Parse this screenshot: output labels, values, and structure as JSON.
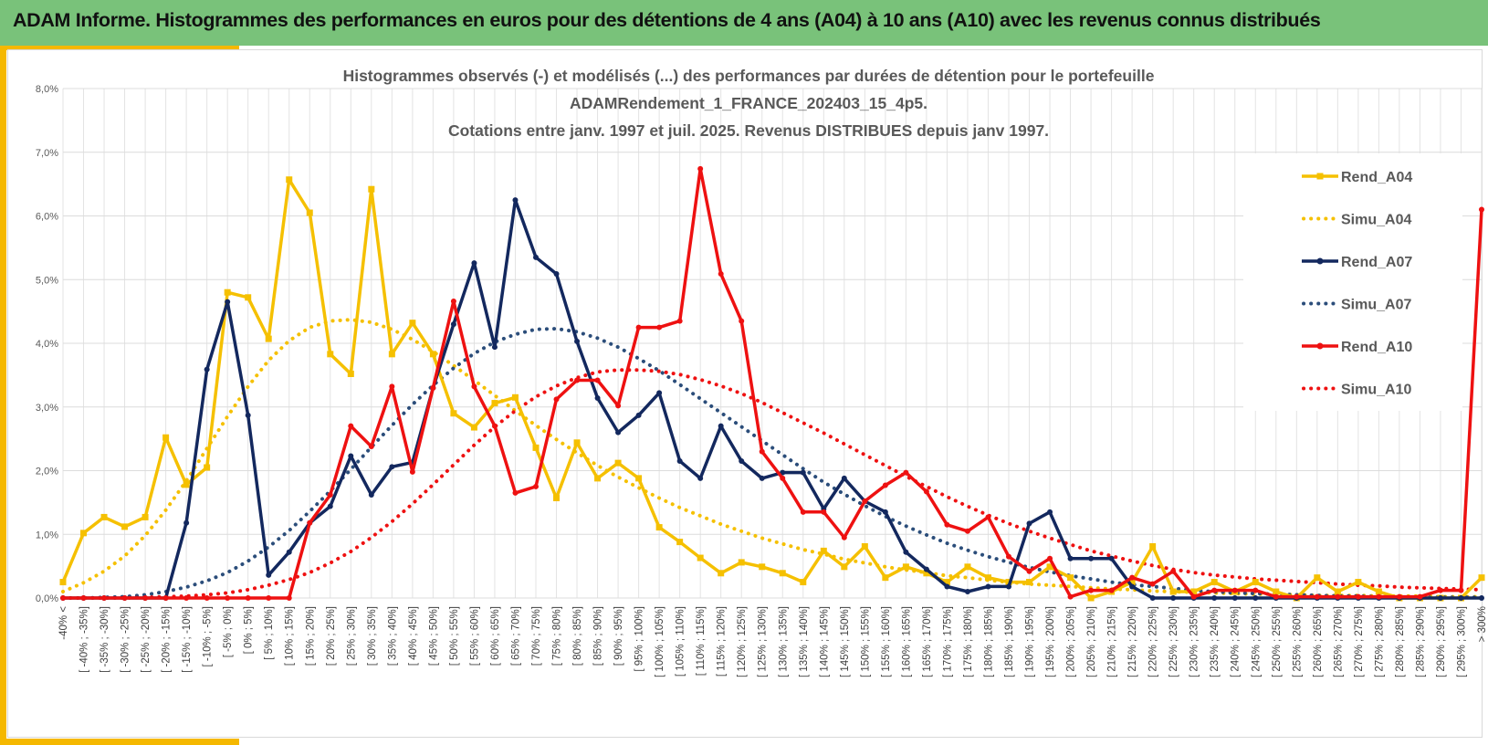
{
  "header": {
    "title": "ADAM Informe. Histogrammes des performances en euros pour des détentions de 4 ans (A04) à 10 ans (A10) avec les revenus connus distribués"
  },
  "colors": {
    "header_bg": "#79c27a",
    "accent": "#f5b800",
    "rend_a04": "#f5c000",
    "rend_a07": "#13285e",
    "rend_a10": "#ee1111"
  },
  "chart_data": {
    "type": "line",
    "title_lines": [
      "Histogrammes observés (-) et modélisés (...) des performances par durées de détention pour  le portefeuille",
      "ADAMRendement_1_FRANCE_202403_15_4p5.",
      "Cotations entre janv. 1997 et juil. 2025. Revenus DISTRIBUES depuis janv 1997."
    ],
    "ylim": [
      0,
      8
    ],
    "y_ticks": [
      "0,0%",
      "1,0%",
      "2,0%",
      "3,0%",
      "4,0%",
      "5,0%",
      "6,0%",
      "7,0%",
      "8,0%"
    ],
    "grid": true,
    "legend_position": "right",
    "categories": [
      "-40% <",
      "[ -40% ; -35%]",
      "[ -35% ; -30%]",
      "[ -30% ; -25%]",
      "[ -25% ; -20%]",
      "[ -20% ; -15%]",
      "[ -15% ; -10%]",
      "[ -10% ; -5%]",
      "[ -5% ; 0%]",
      "[ 0% ; 5%]",
      "[ 5% ; 10%]",
      "[ 10% ; 15%]",
      "[ 15% ; 20%]",
      "[ 20% ; 25%]",
      "[ 25% ; 30%]",
      "[ 30% ; 35%]",
      "[ 35% ; 40%]",
      "[ 40% ; 45%]",
      "[ 45% ; 50%]",
      "[ 50% ; 55%]",
      "[ 55% ; 60%]",
      "[ 60% ; 65%]",
      "[ 65% ; 70%]",
      "[ 70% ; 75%]",
      "[ 75% ; 80%]",
      "[ 80% ; 85%]",
      "[ 85% ; 90%]",
      "[ 90% ; 95%]",
      "[ 95% ; 100%]",
      "[ 100% ; 105%]",
      "[ 105% ; 110%]",
      "[ 110% ; 115%]",
      "[ 115% ; 120%]",
      "[ 120% ; 125%]",
      "[ 125% ; 130%]",
      "[ 130% ; 135%]",
      "[ 135% ; 140%]",
      "[ 140% ; 145%]",
      "[ 145% ; 150%]",
      "[ 150% ; 155%]",
      "[ 155% ; 160%]",
      "[ 160% ; 165%]",
      "[ 165% ; 170%]",
      "[ 170% ; 175%]",
      "[ 175% ; 180%]",
      "[ 180% ; 185%]",
      "[ 185% ; 190%]",
      "[ 190% ; 195%]",
      "[ 195% ; 200%]",
      "[ 200% ; 205%]",
      "[ 205% ; 210%]",
      "[ 210% ; 215%]",
      "[ 215% ; 220%]",
      "[ 220% ; 225%]",
      "[ 225% ; 230%]",
      "[ 230% ; 235%]",
      "[ 235% ; 240%]",
      "[ 240% ; 245%]",
      "[ 245% ; 250%]",
      "[ 250% ; 255%]",
      "[ 255% ; 260%]",
      "[ 260% ; 265%]",
      "[ 265% ; 270%]",
      "[ 270% ; 275%]",
      "[ 275% ; 280%]",
      "[ 280% ; 285%]",
      "[ 285% ; 290%]",
      "[ 290% ; 295%]",
      "[ 295% ; 300%]",
      "> 300%"
    ],
    "series": [
      {
        "name": "Rend_A04",
        "style": "solid",
        "marker": "square",
        "color": "#f5c000",
        "values": [
          0.25,
          1.02,
          1.27,
          1.12,
          1.27,
          2.52,
          1.78,
          2.05,
          4.8,
          4.72,
          4.07,
          6.57,
          6.05,
          3.83,
          3.52,
          6.42,
          3.83,
          4.32,
          3.83,
          2.9,
          2.68,
          3.06,
          3.15,
          2.36,
          1.57,
          2.44,
          1.88,
          2.12,
          1.88,
          1.11,
          0.88,
          0.63,
          0.39,
          0.56,
          0.49,
          0.39,
          0.25,
          0.74,
          0.49,
          0.81,
          0.32,
          0.49,
          0.39,
          0.25,
          0.49,
          0.32,
          0.25,
          0.25,
          0.49,
          0.32,
          0.0,
          0.1,
          0.25,
          0.81,
          0.1,
          0.1,
          0.25,
          0.1,
          0.25,
          0.1,
          0.0,
          0.32,
          0.1,
          0.25,
          0.1,
          0.0,
          0.0,
          0.0,
          0.0,
          0.32
        ]
      },
      {
        "name": "Simu_A04",
        "style": "dotted",
        "color": "#f5c000",
        "values": [
          0.1,
          0.24,
          0.42,
          0.66,
          0.98,
          1.38,
          1.84,
          2.35,
          2.85,
          3.32,
          3.73,
          4.04,
          4.25,
          4.35,
          4.37,
          4.33,
          4.22,
          4.06,
          3.87,
          3.65,
          3.42,
          3.18,
          2.94,
          2.71,
          2.49,
          2.28,
          2.08,
          1.9,
          1.73,
          1.57,
          1.42,
          1.29,
          1.16,
          1.05,
          0.94,
          0.85,
          0.76,
          0.69,
          0.61,
          0.55,
          0.49,
          0.44,
          0.4,
          0.35,
          0.32,
          0.28,
          0.25,
          0.22,
          0.2,
          0.18,
          0.16,
          0.14,
          0.13,
          0.11,
          0.1,
          0.09,
          0.08,
          0.07,
          0.06,
          0.06,
          0.05,
          0.04,
          0.04,
          0.04,
          0.03,
          0.03,
          0.03,
          0.02,
          0.02,
          0.02
        ]
      },
      {
        "name": "Rend_A07",
        "style": "solid",
        "marker": "circle",
        "color": "#13285e",
        "values": [
          0.0,
          0.0,
          0.0,
          0.0,
          0.0,
          0.0,
          1.18,
          3.59,
          4.65,
          2.87,
          0.36,
          0.72,
          1.18,
          1.44,
          2.23,
          1.62,
          2.06,
          2.13,
          3.3,
          4.3,
          5.26,
          3.94,
          6.25,
          5.35,
          5.09,
          4.03,
          3.14,
          2.6,
          2.87,
          3.22,
          2.15,
          1.88,
          2.7,
          2.15,
          1.88,
          1.97,
          1.97,
          1.4,
          1.88,
          1.52,
          1.35,
          0.72,
          0.45,
          0.18,
          0.1,
          0.18,
          0.18,
          1.17,
          1.35,
          0.62,
          0.62,
          0.62,
          0.18,
          0.0,
          0.0,
          0.0,
          0.0,
          0.0,
          0.0,
          0.0,
          0.0,
          0.0,
          0.0,
          0.0,
          0.0,
          0.0,
          0.0,
          0.0,
          0.0,
          0.0
        ]
      },
      {
        "name": "Simu_A07",
        "style": "dotted",
        "color": "#2b4d7a",
        "values": [
          0.0,
          0.0,
          0.01,
          0.02,
          0.05,
          0.1,
          0.17,
          0.27,
          0.4,
          0.58,
          0.8,
          1.06,
          1.36,
          1.68,
          2.02,
          2.37,
          2.71,
          3.04,
          3.34,
          3.61,
          3.84,
          4.02,
          4.14,
          4.22,
          4.23,
          4.18,
          4.08,
          3.94,
          3.76,
          3.57,
          3.35,
          3.13,
          2.91,
          2.69,
          2.47,
          2.25,
          2.03,
          1.82,
          1.63,
          1.45,
          1.28,
          1.13,
          0.99,
          0.86,
          0.75,
          0.65,
          0.56,
          0.48,
          0.41,
          0.35,
          0.3,
          0.25,
          0.21,
          0.18,
          0.15,
          0.12,
          0.1,
          0.08,
          0.07,
          0.06,
          0.05,
          0.04,
          0.03,
          0.03,
          0.02,
          0.02,
          0.01,
          0.01,
          0.01,
          0.01
        ]
      },
      {
        "name": "Rend_A10",
        "style": "solid",
        "marker": "circle",
        "color": "#ee1111",
        "values": [
          0.0,
          0.0,
          0.0,
          0.0,
          0.0,
          0.0,
          0.0,
          0.0,
          0.0,
          0.0,
          0.0,
          0.0,
          1.18,
          1.62,
          2.7,
          2.38,
          3.32,
          1.98,
          3.3,
          4.66,
          3.32,
          2.7,
          1.65,
          1.75,
          3.12,
          3.42,
          3.42,
          3.02,
          4.25,
          4.25,
          4.35,
          6.74,
          5.09,
          4.35,
          2.3,
          1.88,
          1.35,
          1.35,
          0.95,
          1.52,
          1.77,
          1.97,
          1.67,
          1.15,
          1.05,
          1.27,
          0.65,
          0.42,
          0.62,
          0.02,
          0.12,
          0.12,
          0.32,
          0.22,
          0.42,
          0.02,
          0.12,
          0.12,
          0.12,
          0.02,
          0.02,
          0.02,
          0.02,
          0.02,
          0.02,
          0.02,
          0.02,
          0.12,
          0.12,
          6.1
        ]
      },
      {
        "name": "Simu_A10",
        "style": "dotted",
        "color": "#ee1111",
        "values": [
          0.0,
          0.0,
          0.0,
          0.0,
          0.01,
          0.02,
          0.03,
          0.05,
          0.08,
          0.13,
          0.2,
          0.29,
          0.4,
          0.55,
          0.73,
          0.95,
          1.2,
          1.48,
          1.78,
          2.09,
          2.4,
          2.69,
          2.94,
          3.16,
          3.33,
          3.46,
          3.55,
          3.58,
          3.58,
          3.56,
          3.51,
          3.43,
          3.33,
          3.21,
          3.07,
          2.91,
          2.75,
          2.59,
          2.42,
          2.25,
          2.08,
          1.91,
          1.75,
          1.59,
          1.44,
          1.3,
          1.17,
          1.05,
          0.94,
          0.84,
          0.74,
          0.66,
          0.58,
          0.51,
          0.45,
          0.4,
          0.36,
          0.33,
          0.3,
          0.28,
          0.26,
          0.24,
          0.22,
          0.2,
          0.19,
          0.17,
          0.16,
          0.15,
          0.14,
          0.13
        ]
      }
    ]
  }
}
